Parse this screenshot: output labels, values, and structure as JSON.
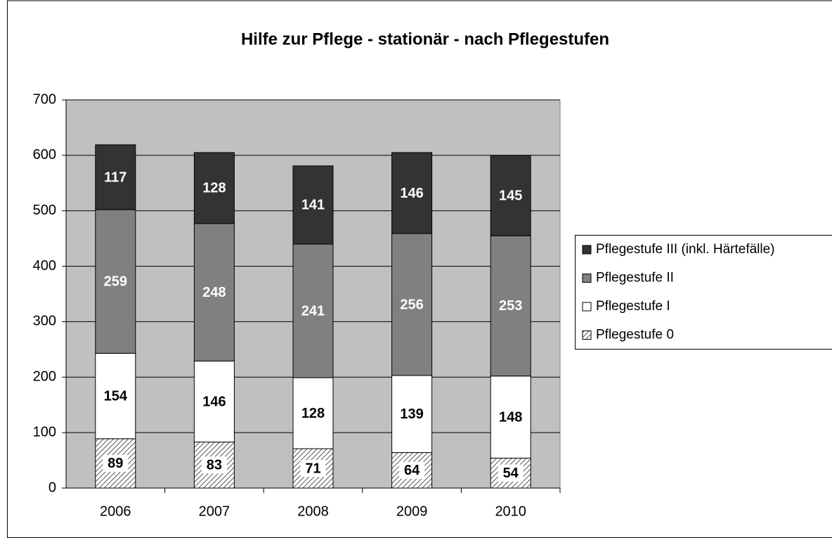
{
  "chart_data": {
    "type": "stacked_bar",
    "title": "Hilfe zur Pflege - stationär - nach Pflegestufen",
    "categories": [
      "2006",
      "2007",
      "2008",
      "2009",
      "2010"
    ],
    "series": [
      {
        "name": "Pflegestufe 0",
        "color": "#ffffff",
        "hatch": true,
        "label_color": "#000000",
        "values": [
          89,
          83,
          71,
          64,
          54
        ]
      },
      {
        "name": "Pflegestufe I",
        "color": "#ffffff",
        "label_color": "#000000",
        "values": [
          154,
          146,
          128,
          139,
          148
        ]
      },
      {
        "name": "Pflegestufe II",
        "color": "#808080",
        "label_color": "#ffffff",
        "values": [
          259,
          248,
          241,
          256,
          253
        ]
      },
      {
        "name": "Pflegestufe III (inkl. Härtefälle)",
        "color": "#333333",
        "label_color": "#ffffff",
        "values": [
          117,
          128,
          141,
          146,
          145
        ]
      }
    ],
    "ylim": [
      0,
      700
    ],
    "yticks": [
      0,
      100,
      200,
      300,
      400,
      500,
      600,
      700
    ],
    "grid": true,
    "legend": "right"
  }
}
